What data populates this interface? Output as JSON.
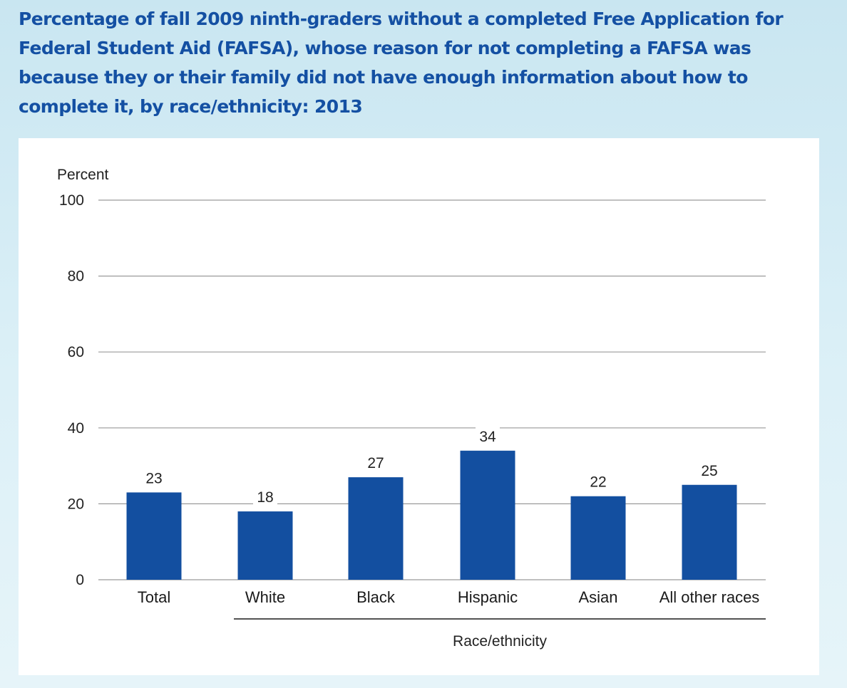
{
  "chart_data": {
    "type": "bar",
    "title": "Percentage of fall 2009 ninth-graders without a completed Free Application for Federal Student Aid (FAFSA), whose reason for not completing a FAFSA was because they or their family did not have enough information about how to complete it, by race/ethnicity: 2013",
    "ylabel": "Percent",
    "xlabel": "Race/ethnicity",
    "categories": [
      "Total",
      "White",
      "Black",
      "Hispanic",
      "Asian",
      "All other races"
    ],
    "values": [
      23,
      18,
      27,
      34,
      22,
      25
    ],
    "ylim": [
      0,
      100
    ],
    "yticks": [
      0,
      20,
      40,
      60,
      80,
      100
    ],
    "grid": true,
    "legend": "none",
    "bar_color": "#134fa0"
  }
}
